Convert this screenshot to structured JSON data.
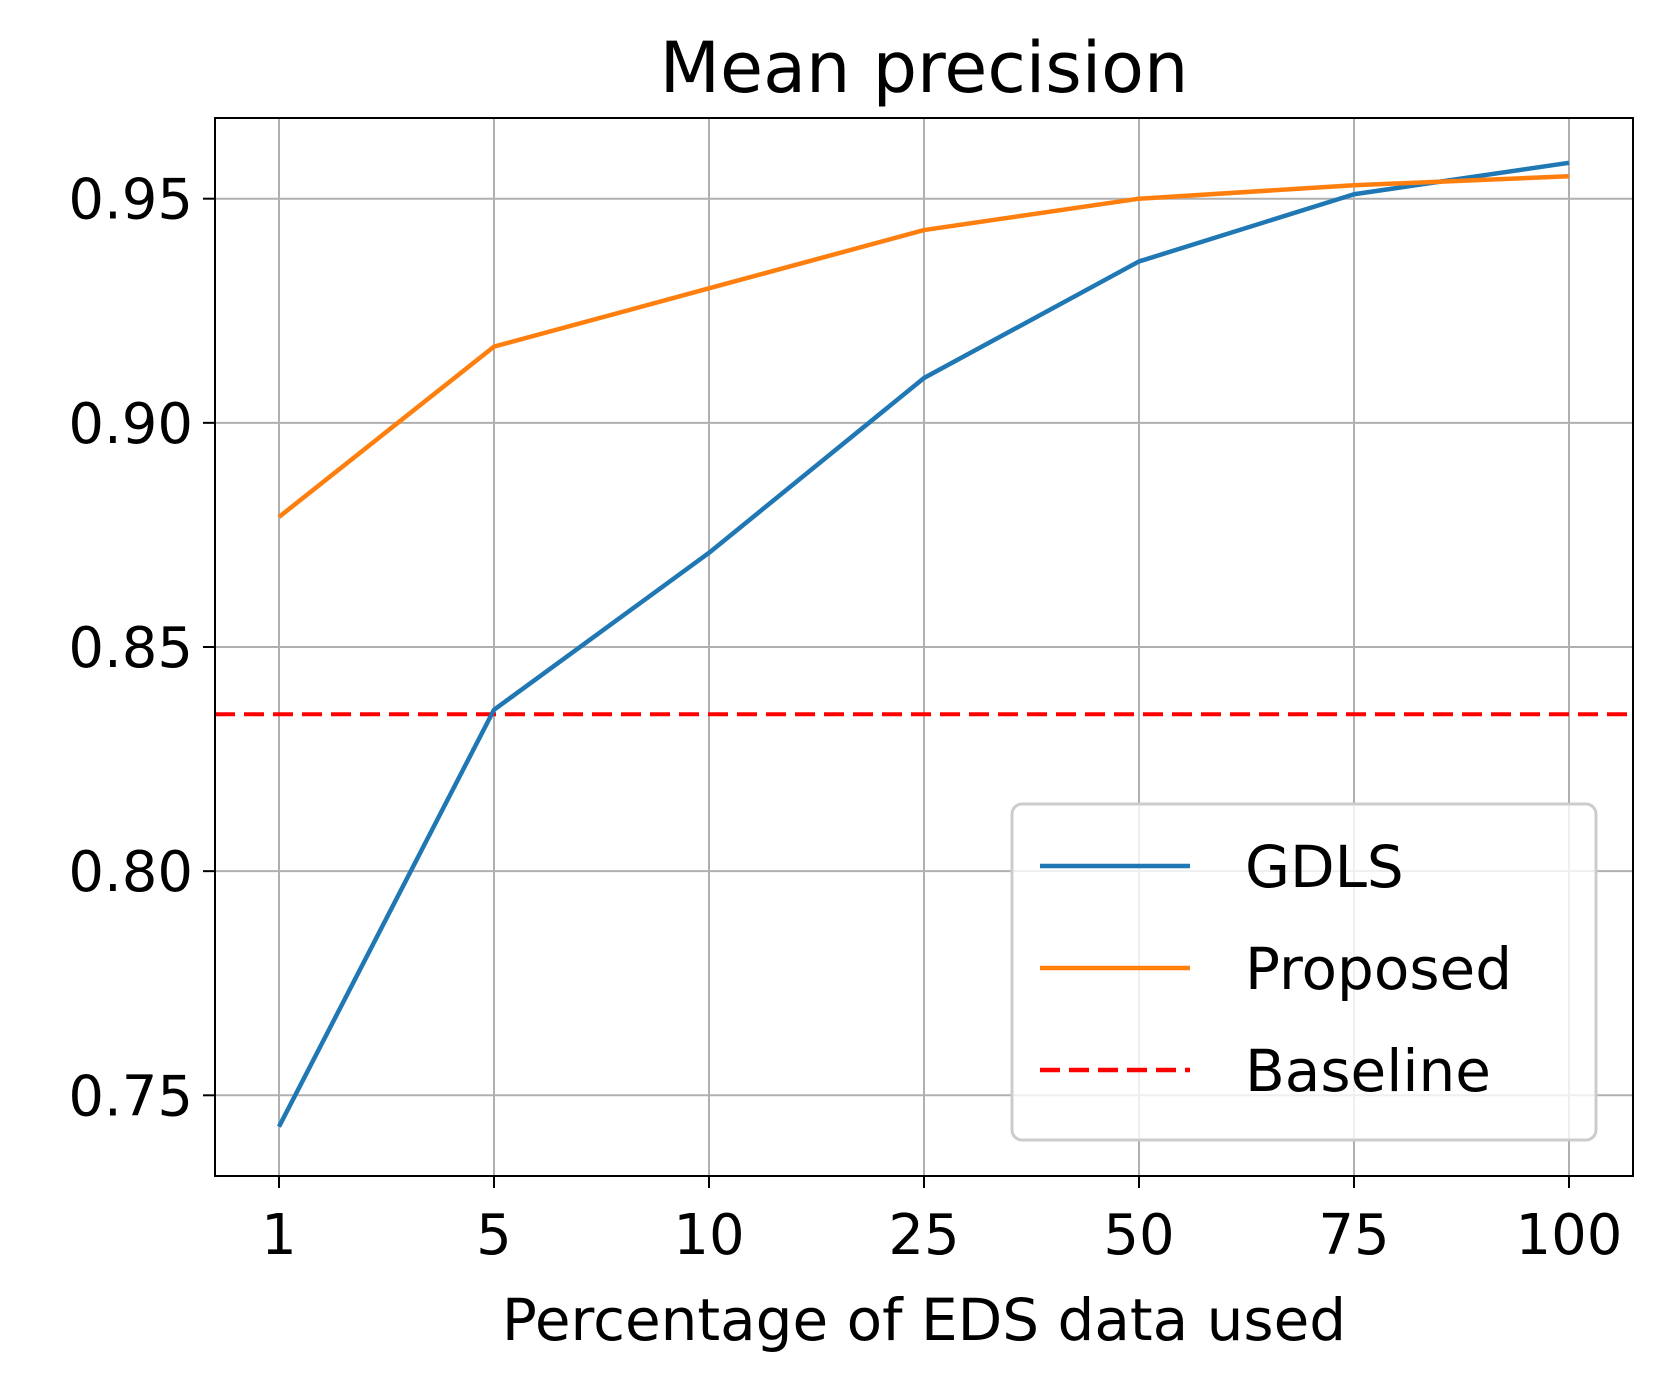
{
  "chart_data": {
    "type": "line",
    "title": "Mean precision",
    "xlabel": "Percentage of EDS data used",
    "ylabel": "",
    "categories": [
      "1",
      "5",
      "10",
      "25",
      "50",
      "75",
      "100"
    ],
    "ylim": [
      0.732,
      0.968
    ],
    "yticks": [
      0.75,
      0.8,
      0.85,
      0.9,
      0.95
    ],
    "ytick_labels": [
      "0.75",
      "0.80",
      "0.85",
      "0.90",
      "0.95"
    ],
    "grid": true,
    "legend_position": "lower-right",
    "series": [
      {
        "name": "GDLS",
        "color": "#1f77b4",
        "style": "solid",
        "values": [
          0.743,
          0.836,
          0.871,
          0.91,
          0.936,
          0.951,
          0.958
        ]
      },
      {
        "name": "Proposed",
        "color": "#ff7f0e",
        "style": "solid",
        "values": [
          0.879,
          0.917,
          0.93,
          0.943,
          0.95,
          0.953,
          0.955
        ]
      }
    ],
    "hlines": [
      {
        "name": "Baseline",
        "color": "#ff0000",
        "style": "dashed",
        "value": 0.835
      }
    ]
  }
}
